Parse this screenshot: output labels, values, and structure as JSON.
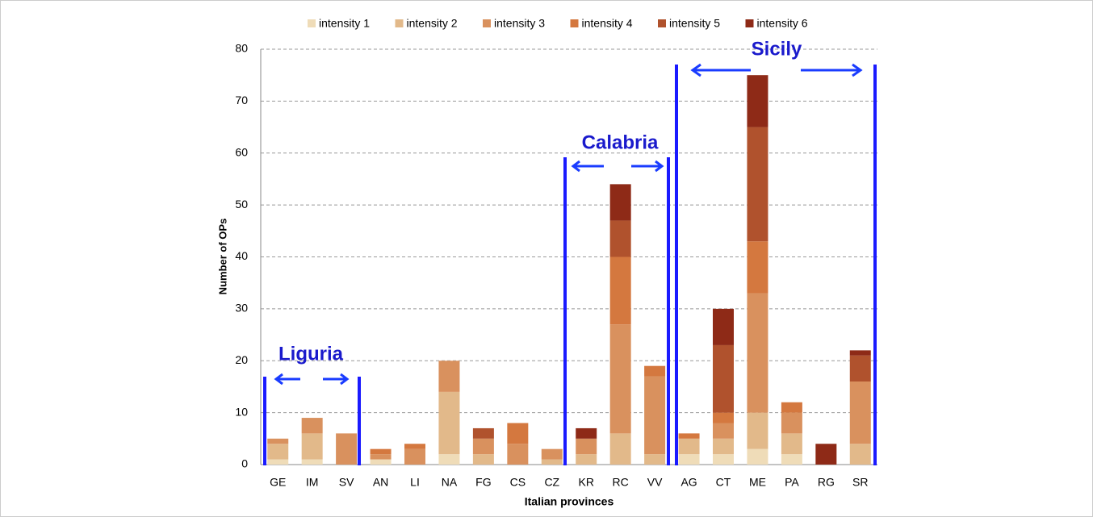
{
  "chart_data": {
    "type": "stacked-bar",
    "x_label": "Italian provinces",
    "y_label": "Number of OPs",
    "categories": [
      "GE",
      "IM",
      "SV",
      "AN",
      "LI",
      "NA",
      "FG",
      "CS",
      "CZ",
      "KR",
      "RC",
      "VV",
      "AG",
      "CT",
      "ME",
      "PA",
      "RG",
      "SR"
    ],
    "series": [
      {
        "name": "intensity 1",
        "color": "#efdcb8",
        "values": [
          1,
          1,
          0,
          1,
          0,
          2,
          0,
          0,
          0,
          0,
          0,
          0,
          2,
          2,
          3,
          2,
          0,
          0
        ]
      },
      {
        "name": "intensity 2",
        "color": "#e2b98a",
        "values": [
          3,
          5,
          0,
          0,
          0,
          12,
          2,
          0,
          1,
          2,
          6,
          2,
          3,
          3,
          7,
          4,
          0,
          4
        ]
      },
      {
        "name": "intensity 3",
        "color": "#d9915e",
        "values": [
          1,
          3,
          6,
          1,
          3,
          6,
          3,
          4,
          2,
          3,
          21,
          15,
          0,
          3,
          23,
          4,
          0,
          12
        ]
      },
      {
        "name": "intensity 4",
        "color": "#d4783f",
        "values": [
          0,
          0,
          0,
          1,
          1,
          0,
          0,
          4,
          0,
          0,
          13,
          2,
          1,
          2,
          10,
          2,
          0,
          0
        ]
      },
      {
        "name": "intensity 5",
        "color": "#b0522d",
        "values": [
          0,
          0,
          0,
          0,
          0,
          0,
          2,
          0,
          0,
          0,
          7,
          0,
          0,
          13,
          22,
          0,
          0,
          5
        ]
      },
      {
        "name": "intensity 6",
        "color": "#8e2a17",
        "values": [
          0,
          0,
          0,
          0,
          0,
          0,
          0,
          0,
          0,
          2,
          7,
          0,
          0,
          7,
          10,
          0,
          4,
          1
        ]
      }
    ],
    "ylim": [
      0,
      80
    ],
    "yticks": [
      0,
      10,
      20,
      30,
      40,
      50,
      60,
      70,
      80
    ],
    "grid": true,
    "annotations": [
      "Liguria",
      "Calabria",
      "Sicily"
    ]
  }
}
